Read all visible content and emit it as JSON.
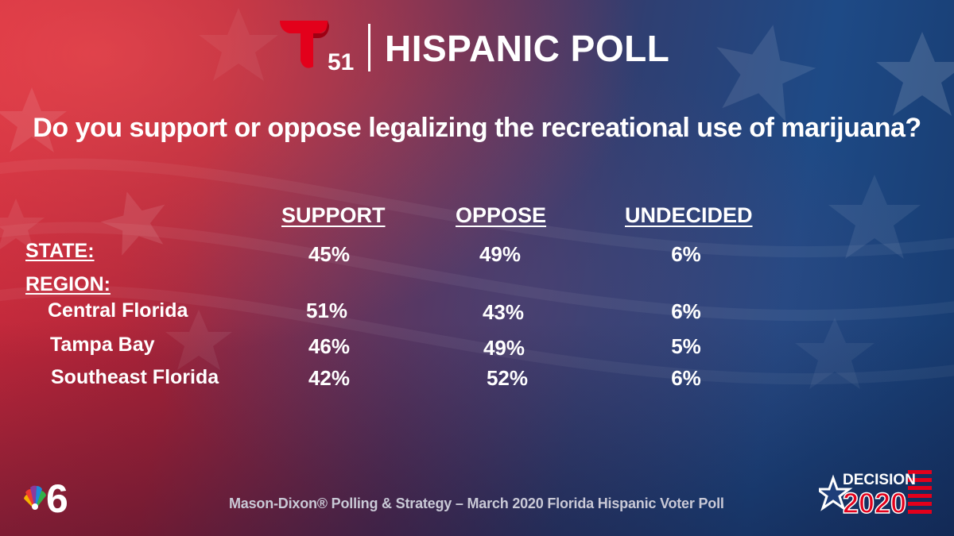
{
  "header": {
    "logo_number": "51",
    "title": "HISPANIC POLL"
  },
  "question": "Do you support or oppose legalizing the recreational use of marijuana?",
  "columns": [
    "SUPPORT",
    "OPPOSE",
    "UNDECIDED"
  ],
  "state": {
    "label": "STATE:",
    "values": [
      "45%",
      "49%",
      "6%"
    ]
  },
  "region": {
    "label": "REGION:",
    "rows": [
      {
        "label": "Central Florida",
        "values": [
          "51%",
          "43%",
          "6%"
        ]
      },
      {
        "label": "Tampa Bay",
        "values": [
          "46%",
          "49%",
          "5%"
        ]
      },
      {
        "label": "Southeast Florida",
        "values": [
          "42%",
          "52%",
          "6%"
        ]
      }
    ]
  },
  "footer": {
    "source": "Mason-Dixon® Polling & Strategy – March 2020 Florida Hispanic Voter Poll",
    "station_number": "6",
    "decision_label": "DECISION",
    "decision_year": "2020"
  },
  "colors": {
    "telemundo_red": "#e3001b",
    "background_red": "#c8283a",
    "background_blue": "#1e4a86",
    "footer_text": "#c9c9d6"
  },
  "icons": [
    "telemundo-51-logo",
    "nbc6-peacock-logo",
    "decision-2020-logo",
    "star-pattern"
  ]
}
